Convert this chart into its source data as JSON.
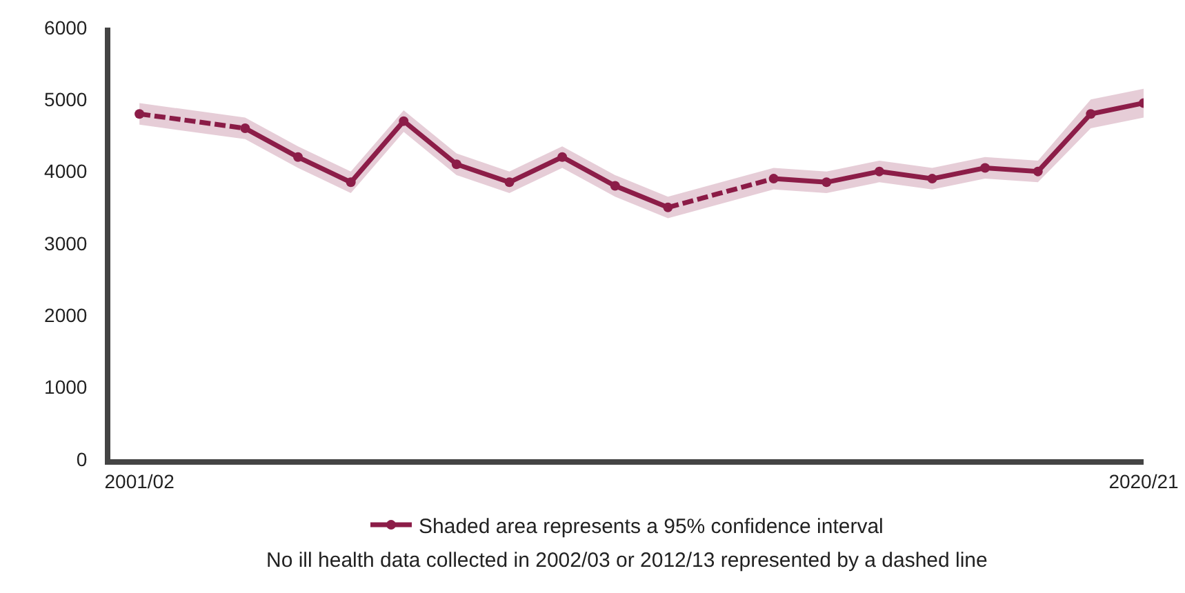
{
  "chart_data": {
    "type": "line",
    "categories": [
      "2001/02",
      null,
      null,
      null,
      null,
      null,
      null,
      null,
      null,
      null,
      null,
      null,
      null,
      null,
      null,
      null,
      null,
      null,
      null,
      "2020/21"
    ],
    "series": [
      {
        "name": "Shaded area represents a 95% confidence interval",
        "color": "#8c1d48",
        "line_style": "solid",
        "marker": "circle",
        "values": [
          4800,
          null,
          4600,
          4200,
          3850,
          4700,
          4100,
          3850,
          4200,
          3800,
          3500,
          null,
          3900,
          3850,
          4000,
          3900,
          4050,
          4000,
          4800,
          4950
        ],
        "lower": [
          4650,
          null,
          4450,
          4050,
          3700,
          4550,
          3950,
          3700,
          4050,
          3650,
          3350,
          null,
          3750,
          3700,
          3850,
          3750,
          3900,
          3850,
          4600,
          4750
        ],
        "upper": [
          4950,
          null,
          4750,
          4350,
          4000,
          4850,
          4250,
          4000,
          4350,
          3950,
          3650,
          null,
          4050,
          4000,
          4150,
          4050,
          4200,
          4150,
          5000,
          5150
        ]
      },
      {
        "color": "#8a1c47",
        "line_style": "dashed",
        "marker": "none",
        "values": [
          4800,
          4700,
          4600,
          null,
          null,
          null,
          null,
          null,
          null,
          null,
          null,
          null,
          null,
          null,
          null,
          null,
          null,
          null,
          null,
          null
        ]
      },
      {
        "color": "#8b1b46",
        "line_style": "dashed",
        "marker": "none",
        "values": [
          null,
          null,
          null,
          null,
          null,
          null,
          null,
          null,
          null,
          null,
          3500,
          3700,
          3900,
          null,
          null,
          null,
          null,
          null,
          null,
          null
        ]
      }
    ],
    "ylim": [
      0,
      6000
    ],
    "yticks": [
      0,
      1000,
      2000,
      3000,
      4000,
      5000,
      6000
    ],
    "grid": false,
    "legend": "bottom",
    "annotations": [
      "No ill health data collected in 2002/03 or 2012/13 represented by a dashed line"
    ]
  }
}
